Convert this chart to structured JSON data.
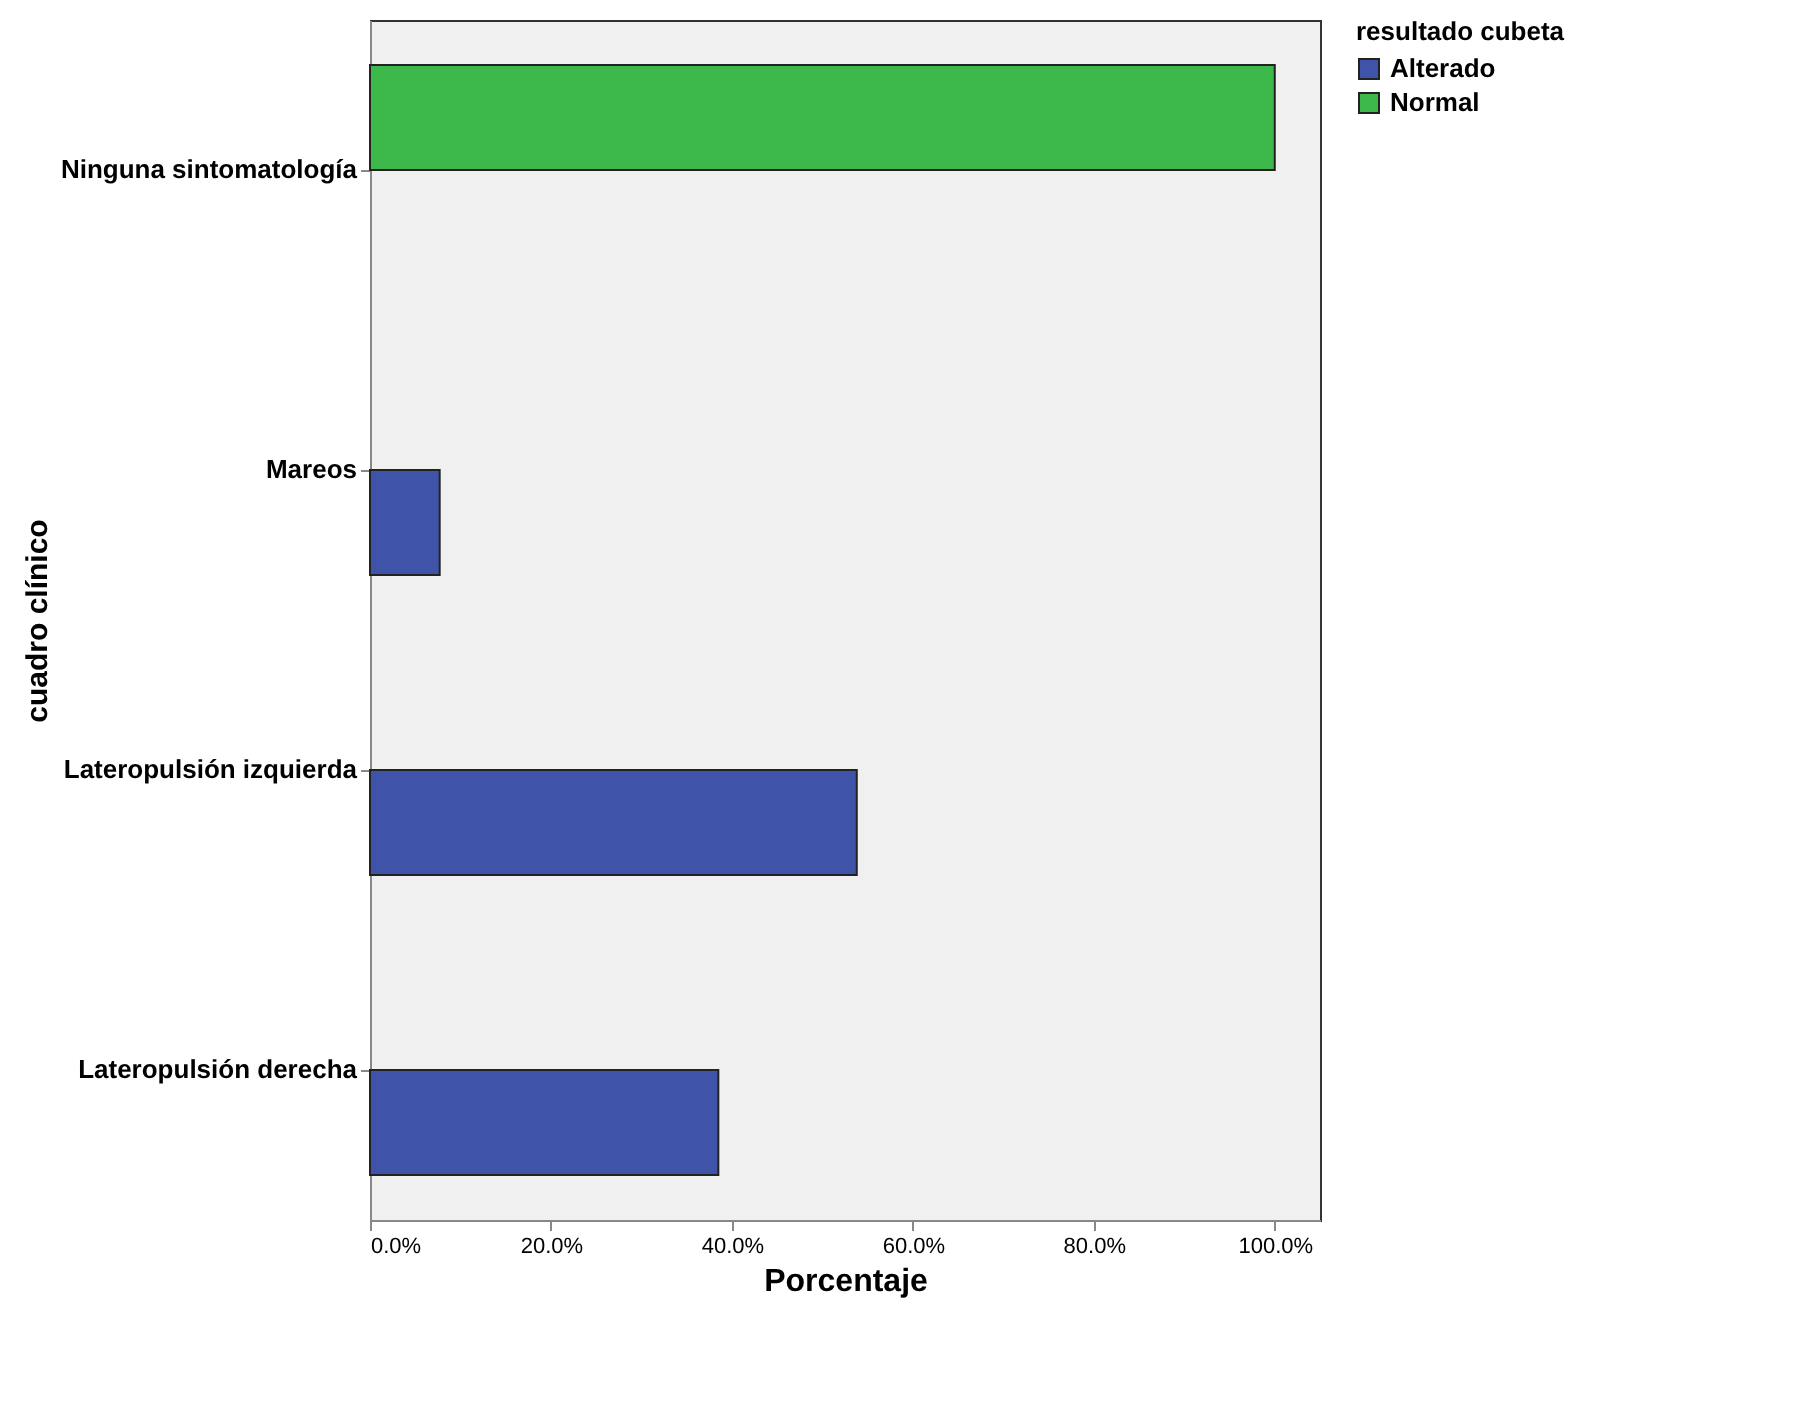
{
  "chart_data": {
    "type": "bar",
    "orientation": "horizontal",
    "xlabel": "Porcentaje",
    "ylabel": "cuadro clínico",
    "legend_title": "resultado cubeta",
    "legend": "top right",
    "grid": false,
    "categories": [
      "Ninguna sintomatología",
      "Mareos",
      "Lateropulsión izquierda",
      "Lateropulsión derecha"
    ],
    "series": [
      {
        "name": "Alterado",
        "color": "#3f53a8",
        "values": [
          null,
          7.7,
          53.8,
          38.5
        ]
      },
      {
        "name": "Normal",
        "color": "#3cb94a",
        "values": [
          100,
          null,
          null,
          null
        ]
      }
    ],
    "xlim": [
      0,
      105
    ],
    "xticks": [
      {
        "value": 0,
        "label": "0.0%"
      },
      {
        "value": 20,
        "label": "20.0%"
      },
      {
        "value": 40,
        "label": "40.0%"
      },
      {
        "value": 60,
        "label": "60.0%"
      },
      {
        "value": 80,
        "label": "80.0%"
      },
      {
        "value": 100,
        "label": "100.0%"
      }
    ]
  }
}
